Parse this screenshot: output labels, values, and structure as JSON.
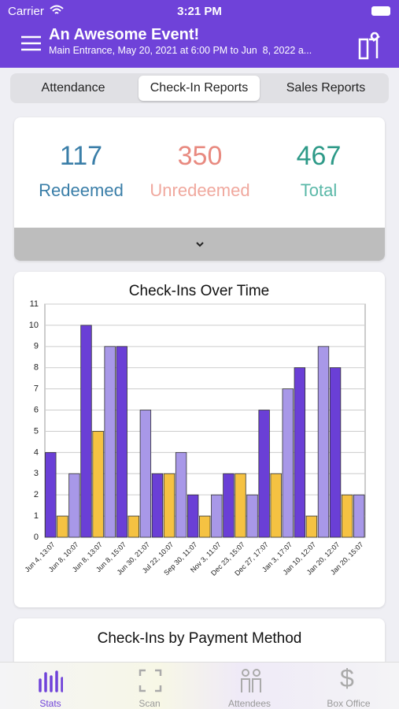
{
  "status_bar": {
    "carrier": "Carrier",
    "time": "3:21 PM"
  },
  "header": {
    "title": "An Awesome Event!",
    "subtitle": "Main Entrance, May 20, 2021 at 6:00 PM to Jun  8, 2022 a..."
  },
  "tabs": [
    "Attendance",
    "Check-In Reports",
    "Sales Reports"
  ],
  "stats": [
    {
      "value": 117,
      "label": "Redeemed"
    },
    {
      "value": 350,
      "label": "Unredeemed"
    },
    {
      "value": 467,
      "label": "Total"
    }
  ],
  "chart_data": {
    "type": "bar",
    "title": "Check-Ins Over Time",
    "categories": [
      "Jun 4, 13:07",
      null,
      "Jun 8, 10:07",
      null,
      "Jun 8, 13:07",
      null,
      "Jun 8, 15:07",
      null,
      "Jun 30, 21:07",
      null,
      "Jul 22, 10:07",
      null,
      "Sep 30, 11:07",
      null,
      "Nov 3, 11:07",
      null,
      "Dec 23, 15:07",
      null,
      "Dec 27, 17:07",
      null,
      "Jan 3, 17:07",
      null,
      "Jan 10, 12:07",
      null,
      "Jan 20, 12:07",
      null,
      "Jan 20, 15:07"
    ],
    "values": [
      4,
      1,
      3,
      10,
      5,
      9,
      9,
      1,
      6,
      3,
      3,
      4,
      2,
      1,
      2,
      3,
      3,
      2,
      6,
      3,
      7,
      8,
      1,
      9,
      8,
      2,
      2
    ],
    "colors": [
      "#6a3fd6",
      "#f5c242",
      "#a898e8"
    ],
    "ylim": [
      0,
      11
    ],
    "yticks": [
      0,
      1,
      2,
      3,
      4,
      5,
      6,
      7,
      8,
      9,
      10,
      11
    ],
    "grid": true
  },
  "second_card": {
    "title": "Check-Ins by Payment Method"
  },
  "tab_bar": [
    "Stats",
    "Scan",
    "Attendees",
    "Box Office"
  ]
}
